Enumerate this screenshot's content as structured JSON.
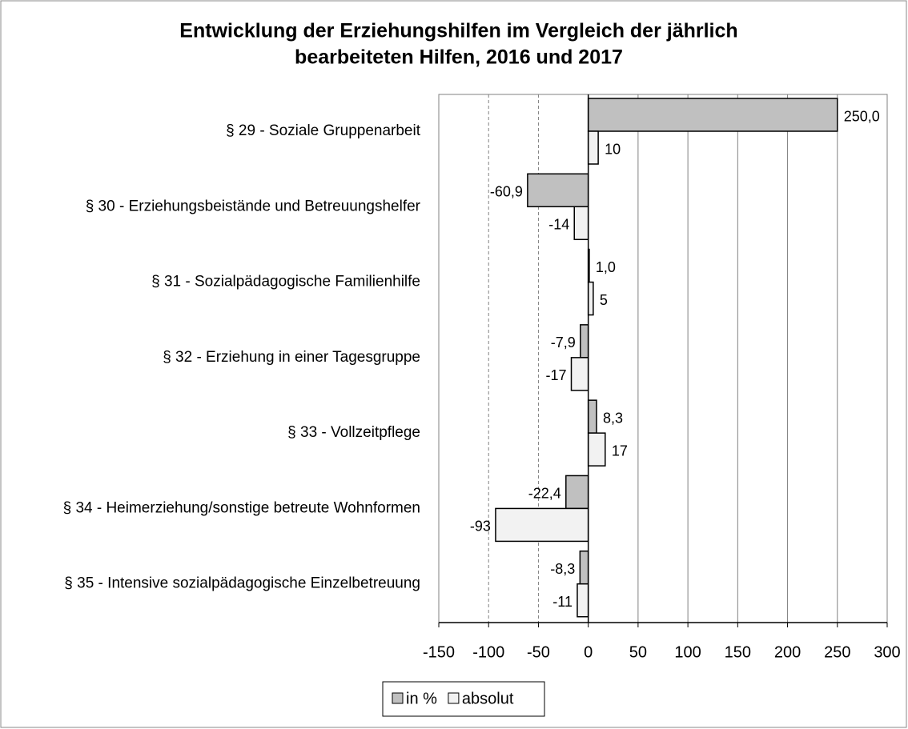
{
  "chart_data": {
    "type": "hbar",
    "title": [
      "Entwicklung der Erziehungshilfen im Vergleich der jährlich",
      "bearbeiteten Hilfen, 2016 und 2017"
    ],
    "categories": [
      "§ 29 - Soziale Gruppenarbeit",
      "§ 30 - Erziehungsbeistände und Betreuungshelfer",
      "§ 31 - Sozialpädagogische Familienhilfe",
      "§ 32 - Erziehung in einer Tagesgruppe",
      "§ 33 - Vollzeitpflege",
      "§ 34 - Heimerziehung/sonstige betreute Wohnformen",
      "§ 35 - Intensive sozialpädagogische Einzelbetreuung"
    ],
    "series": [
      {
        "name": "in %",
        "color": "#c0c0c0",
        "values": [
          250.0,
          -60.9,
          1.0,
          -7.9,
          8.3,
          -22.4,
          -8.3
        ],
        "value_labels": [
          "250,0",
          "-60,9",
          "1,0",
          "-7,9",
          "8,3",
          "-22,4",
          "-8,3"
        ]
      },
      {
        "name": "absolut",
        "color": "#f2f2f2",
        "values": [
          10,
          -14,
          5,
          -17,
          17,
          -93,
          -11
        ]
      }
    ],
    "xlim": [
      -150,
      300
    ],
    "xticks": [
      -150,
      -100,
      -50,
      0,
      50,
      100,
      150,
      200,
      250,
      300
    ],
    "grid": true,
    "legend": "bottom"
  }
}
